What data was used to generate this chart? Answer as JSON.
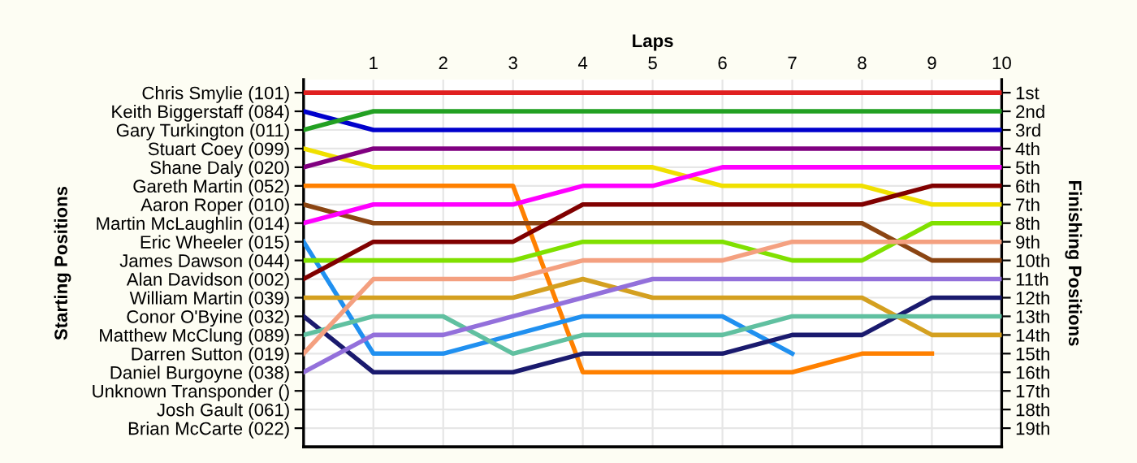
{
  "chart_data": {
    "type": "line",
    "xlabel": "Laps",
    "annotations": [
      "Starting Positions"
    ],
    "y2label": "Finishing Positions",
    "x": [
      0,
      1,
      2,
      3,
      4,
      5,
      6,
      7,
      8,
      9,
      10
    ],
    "xlim": [
      0,
      10
    ],
    "xticks": [
      {
        "value": 0,
        "label": null
      },
      1,
      2,
      3,
      4,
      5,
      6,
      7,
      8,
      9,
      10
    ],
    "y_categories": [
      "Chris Smylie (101)",
      "Keith Biggerstaff (084)",
      "Gary Turkington (011)",
      "Stuart Coey (099)",
      "Shane Daly (020)",
      "Gareth Martin (052)",
      "Aaron Roper (010)",
      "Martin McLaughlin (014)",
      "Eric Wheeler (015)",
      "James Dawson (044)",
      "Alan Davidson (002)",
      "William Martin (039)",
      "Conor O'Byine (032)",
      "Matthew McClung (089)",
      "Darren Sutton (019)",
      "Daniel Burgoyne (038)",
      "Unknown Transponder ()",
      "Josh Gault (061)",
      "Brian McCarte (022)"
    ],
    "y2lim": [
      20,
      0.3
    ],
    "y2ticks": [
      {
        "value": 1,
        "label": "1st"
      },
      {
        "value": 2,
        "label": "2nd"
      },
      {
        "value": 3,
        "label": "3rd"
      },
      {
        "value": 4,
        "label": "4th"
      },
      {
        "value": 5,
        "label": "5th"
      },
      {
        "value": 6,
        "label": "6th"
      },
      {
        "value": 7,
        "label": "7th"
      },
      {
        "value": 8,
        "label": "8th"
      },
      {
        "value": 9,
        "label": "9th"
      },
      {
        "value": 10,
        "label": "10th"
      },
      {
        "value": 11,
        "label": "11th"
      },
      {
        "value": 12,
        "label": "12th"
      },
      {
        "value": 13,
        "label": "13th"
      },
      {
        "value": 14,
        "label": "14th"
      },
      {
        "value": 15,
        "label": "15th"
      },
      {
        "value": 16,
        "label": "16th"
      },
      {
        "value": 17,
        "label": "17th"
      },
      {
        "value": 18,
        "label": "18th"
      },
      {
        "value": 19,
        "label": "19th"
      }
    ],
    "grid": true,
    "marker": "none",
    "line_style": "solid",
    "series": [
      {
        "axis": "y2",
        "color": "#e02020",
        "values": [
          1,
          1,
          1,
          1,
          1,
          1,
          1,
          1,
          1,
          1,
          1
        ]
      },
      {
        "axis": "y2",
        "color": "#0000cc",
        "values": [
          2,
          3,
          3,
          3,
          3,
          3,
          3,
          3,
          3,
          3,
          3
        ]
      },
      {
        "axis": "y2",
        "color": "#22a022",
        "values": [
          3,
          2,
          2,
          2,
          2,
          2,
          2,
          2,
          2,
          2,
          2
        ]
      },
      {
        "axis": "y2",
        "color": "#f0e000",
        "values": [
          4,
          5,
          5,
          5,
          5,
          5,
          6,
          6,
          6,
          7,
          7
        ]
      },
      {
        "axis": "y2",
        "color": "#800080",
        "values": [
          5,
          4,
          4,
          4,
          4,
          4,
          4,
          4,
          4,
          4,
          4
        ]
      },
      {
        "axis": "y2",
        "color": "#ff8000",
        "values": [
          6,
          6,
          6,
          6,
          16,
          16,
          16,
          16,
          15,
          15,
          null
        ]
      },
      {
        "axis": "y2",
        "color": "#8b4513",
        "values": [
          7,
          8,
          8,
          8,
          8,
          8,
          8,
          8,
          8,
          10,
          10
        ]
      },
      {
        "axis": "y2",
        "color": "#ff00ff",
        "values": [
          8,
          7,
          7,
          7,
          6,
          6,
          5,
          5,
          5,
          5,
          5
        ]
      },
      {
        "axis": "y2",
        "color": "#2090f0",
        "values": [
          9,
          15,
          15,
          14,
          13,
          13,
          13,
          15,
          null,
          null,
          null
        ]
      },
      {
        "axis": "y2",
        "color": "#80e000",
        "values": [
          10,
          10,
          10,
          10,
          9,
          9,
          9,
          10,
          10,
          8,
          8
        ]
      },
      {
        "axis": "y2",
        "color": "#800000",
        "values": [
          11,
          9,
          9,
          9,
          7,
          7,
          7,
          7,
          7,
          6,
          6
        ]
      },
      {
        "axis": "y2",
        "color": "#d4a020",
        "values": [
          12,
          12,
          12,
          12,
          11,
          12,
          12,
          12,
          12,
          14,
          14
        ]
      },
      {
        "axis": "y2",
        "color": "#1a1a6e",
        "values": [
          13,
          16,
          16,
          16,
          15,
          15,
          15,
          14,
          14,
          12,
          12
        ]
      },
      {
        "axis": "y2",
        "color": "#60c0a0",
        "values": [
          14,
          13,
          13,
          15,
          14,
          14,
          14,
          13,
          13,
          13,
          13
        ]
      },
      {
        "axis": "y2",
        "color": "#f4a080",
        "values": [
          15,
          11,
          11,
          11,
          10,
          10,
          10,
          9,
          9,
          9,
          9
        ]
      },
      {
        "axis": "y2",
        "color": "#9370db",
        "values": [
          16,
          14,
          14,
          13,
          12,
          11,
          11,
          11,
          11,
          11,
          11
        ]
      }
    ]
  }
}
